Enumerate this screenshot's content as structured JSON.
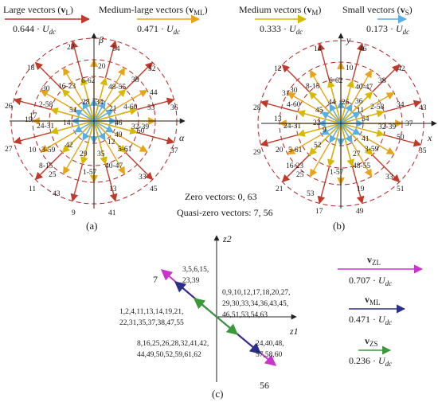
{
  "legend": {
    "large": {
      "name": "Large vectors (",
      "sym": "v",
      "sub": "L",
      "close": ")",
      "mag": "0.644",
      "unit": "U",
      "unit_sub": "dc"
    },
    "medlarge": {
      "name": "Medium-large vectors (",
      "sym": "v",
      "sub": "ML",
      "close": ")",
      "mag": "0.471",
      "unit": "U",
      "unit_sub": "dc"
    },
    "medium": {
      "name": "Medium vectors (",
      "sym": "v",
      "sub": "M",
      "close": ")",
      "mag": "0.333",
      "unit": "U",
      "unit_sub": "dc"
    },
    "small": {
      "name": "Small vectors (",
      "sym": "v",
      "sub": "S",
      "close": ")",
      "mag": "0.173",
      "unit": "U",
      "unit_sub": "dc"
    }
  },
  "colors": {
    "large": "#c0392b",
    "medlarge": "#e8a317",
    "medium": "#d9b800",
    "small": "#5aaee0",
    "circle": "#b22222",
    "zl": "#cc33cc",
    "ml": "#2a2f8a",
    "zs": "#3a9a3a"
  },
  "panel_a": {
    "axis_alpha": "α",
    "axis_beta": "β",
    "caption": "(a)",
    "labels": [
      {
        "t": "22"
      },
      {
        "t": "54"
      },
      {
        "t": "18"
      },
      {
        "t": "52"
      },
      {
        "t": "26"
      },
      {
        "t": "36"
      },
      {
        "t": "27"
      },
      {
        "t": "37"
      },
      {
        "t": "11"
      },
      {
        "t": "45"
      },
      {
        "t": "9"
      },
      {
        "t": "41"
      },
      {
        "t": "20"
      },
      {
        "t": "38"
      },
      {
        "t": "44"
      },
      {
        "t": "17"
      },
      {
        "t": "19"
      },
      {
        "t": "10"
      },
      {
        "t": "25"
      },
      {
        "t": "43"
      },
      {
        "t": "13"
      },
      {
        "t": "33"
      },
      {
        "t": "6-62"
      },
      {
        "t": "48-55"
      },
      {
        "t": "4-60"
      },
      {
        "t": "32-39"
      },
      {
        "t": "5-61"
      },
      {
        "t": "40-47"
      },
      {
        "t": "1-57"
      },
      {
        "t": "8-15"
      },
      {
        "t": "3-59"
      },
      {
        "t": "24-31"
      },
      {
        "t": "2-58"
      },
      {
        "t": "16-23"
      },
      {
        "t": "28"
      },
      {
        "t": "34"
      },
      {
        "t": "21"
      },
      {
        "t": "53"
      },
      {
        "t": "46"
      },
      {
        "t": "49"
      },
      {
        "t": "12"
      },
      {
        "t": "35"
      },
      {
        "t": "29"
      },
      {
        "t": "42"
      },
      {
        "t": "14"
      },
      {
        "t": "51"
      },
      {
        "t": "30"
      },
      {
        "t": "50"
      }
    ]
  },
  "panel_b": {
    "axis_x": "x",
    "axis_y": "y",
    "caption": "(b)",
    "labels": [
      {
        "t": "14"
      },
      {
        "t": "46"
      },
      {
        "t": "12"
      },
      {
        "t": "42"
      },
      {
        "t": "28"
      },
      {
        "t": "43"
      },
      {
        "t": "29"
      },
      {
        "t": "35"
      },
      {
        "t": "21"
      },
      {
        "t": "51"
      },
      {
        "t": "17"
      },
      {
        "t": "49"
      },
      {
        "t": "10"
      },
      {
        "t": "38"
      },
      {
        "t": "34"
      },
      {
        "t": "50"
      },
      {
        "t": "13"
      },
      {
        "t": "20"
      },
      {
        "t": "25"
      },
      {
        "t": "53"
      },
      {
        "t": "19"
      },
      {
        "t": "33"
      },
      {
        "t": "6-62"
      },
      {
        "t": "40-47"
      },
      {
        "t": "2-58"
      },
      {
        "t": "32-39"
      },
      {
        "t": "3-59"
      },
      {
        "t": "48-55"
      },
      {
        "t": "1-57"
      },
      {
        "t": "16-23"
      },
      {
        "t": "5-61"
      },
      {
        "t": "24-31"
      },
      {
        "t": "4-60"
      },
      {
        "t": "8-15"
      },
      {
        "t": "44"
      },
      {
        "t": "30"
      },
      {
        "t": "26"
      },
      {
        "t": "36"
      },
      {
        "t": "11"
      },
      {
        "t": "54"
      },
      {
        "t": "41"
      },
      {
        "t": "27"
      },
      {
        "t": "9"
      },
      {
        "t": "52"
      },
      {
        "t": "22"
      },
      {
        "t": "45"
      },
      {
        "t": "37"
      },
      {
        "t": "31"
      }
    ]
  },
  "zero_vectors": "Zero vectors: 0, 63",
  "quasi_zero_vectors": "Quasi-zero vectors: 7, 56",
  "panel_c": {
    "axis_z1": "z1",
    "axis_z2": "z2",
    "caption": "(c)",
    "end_top": "7",
    "end_bottom": "56",
    "grp_top_1": "3,5,6,15,",
    "grp_top_2": "23,39",
    "grp_zero_1": "0,9,10,12,17,18,20,27,",
    "grp_zero_2": "29,30,33,34,36,43,45,",
    "grp_zero_3": "46,51,53,54,63",
    "grp_left_1": "1,2,4,11,13,14,19,21,",
    "grp_left_2": "22,31,35,37,38,47,55",
    "grp_bl_1": "8,16,25,26,28,32,41,42,",
    "grp_bl_2": "44,49,50,52,59,61,62",
    "grp_br_1": "24,40,48,",
    "grp_br_2": "57,58,60",
    "leg_zl": {
      "sym": "v",
      "sub": "ZL",
      "mag": "0.707",
      "unit": "U",
      "unit_sub": "dc"
    },
    "leg_ml": {
      "sym": "v",
      "sub": "ML",
      "mag": "0.471",
      "unit": "U",
      "unit_sub": "dc"
    },
    "leg_zs": {
      "sym": "v",
      "sub": "ZS",
      "mag": "0.236",
      "unit": "U",
      "unit_sub": "dc"
    }
  }
}
